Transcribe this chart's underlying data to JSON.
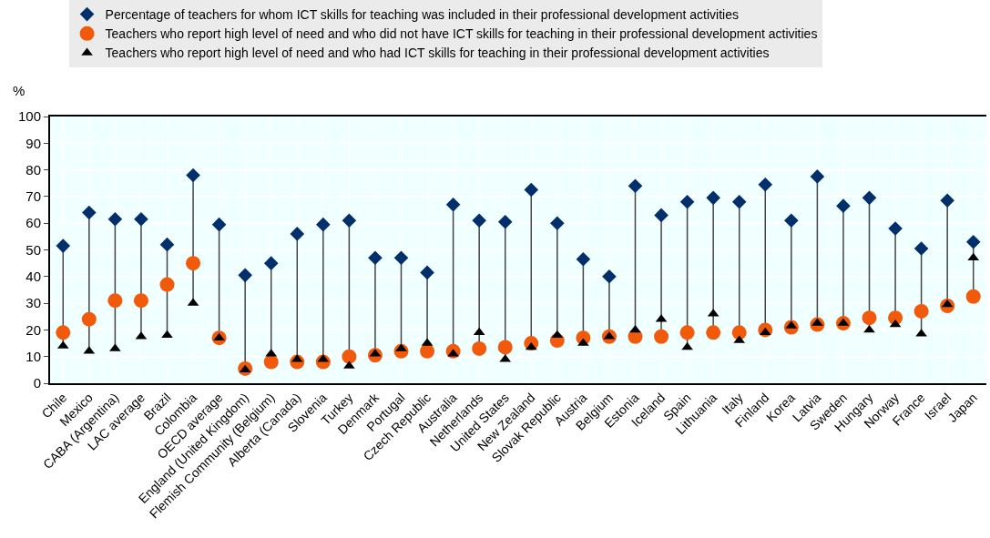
{
  "chart_data": {
    "type": "scatter",
    "ylabel": "%",
    "categories": [
      "Chile",
      "Mexico",
      "CABA (Argentina)",
      "LAC average",
      "Brazil",
      "Colombia",
      "OECD average",
      "England (United Kingdom)",
      "Flemish Community (Belgium)",
      "Alberta (Canada)",
      "Slovenia",
      "Turkey",
      "Denmark",
      "Portugal",
      "Czech Republic",
      "Australia",
      "Netherlands",
      "United States",
      "New Zealand",
      "Slovak Republic",
      "Austria",
      "Belgium",
      "Estonia",
      "Iceland",
      "Spain",
      "Lithuania",
      "Italy",
      "Finland",
      "Korea",
      "Latvia",
      "Sweden",
      "Hungary",
      "Norway",
      "France",
      "Israel",
      "Japan"
    ],
    "series": [
      {
        "name": "Percentage of teachers for whom ICT skills for teaching was included in their professional development activities",
        "color": "#002f6c",
        "marker": "diamond",
        "values": [
          51.5,
          64,
          61.5,
          61.5,
          52,
          78,
          59.5,
          40.5,
          45,
          56,
          59.5,
          61,
          47,
          47,
          41.5,
          67,
          61,
          60.5,
          72.5,
          60,
          46.5,
          40,
          74,
          63,
          68,
          69.5,
          68,
          74.5,
          61,
          77.5,
          66.5,
          69.5,
          58,
          50.5,
          68.5,
          53
        ]
      },
      {
        "name": "Teachers who report high level of need and who did not have ICT skills for teaching in their professional development activities",
        "color": "#f05a0a",
        "marker": "circle",
        "values": [
          19,
          24,
          31,
          31,
          37,
          45,
          17,
          5.5,
          8,
          8,
          8,
          10,
          10.5,
          12,
          12,
          12,
          13,
          13.5,
          15,
          16,
          17,
          17.5,
          17.5,
          17.5,
          19,
          19,
          19,
          20,
          21,
          22,
          22.5,
          24.5,
          24.5,
          27,
          29,
          32.5
        ]
      },
      {
        "name": "Teachers who report high level of need and who had ICT skills for teaching in their professional development activities",
        "color": "#000000",
        "marker": "triangle",
        "values": [
          14,
          12,
          13,
          17.5,
          18,
          30,
          17,
          5,
          11,
          9,
          9,
          6.5,
          11,
          13,
          15,
          11,
          19,
          9,
          13.5,
          18,
          15,
          17.5,
          20,
          24,
          13.5,
          26,
          16,
          19,
          21.5,
          22.5,
          22.5,
          20,
          22,
          18.5,
          29.5,
          47
        ]
      }
    ],
    "ylim": [
      0,
      100
    ],
    "yticks": [
      0,
      10,
      20,
      30,
      40,
      50,
      60,
      70,
      80,
      90,
      100
    ],
    "grid": true,
    "legend": "top"
  }
}
